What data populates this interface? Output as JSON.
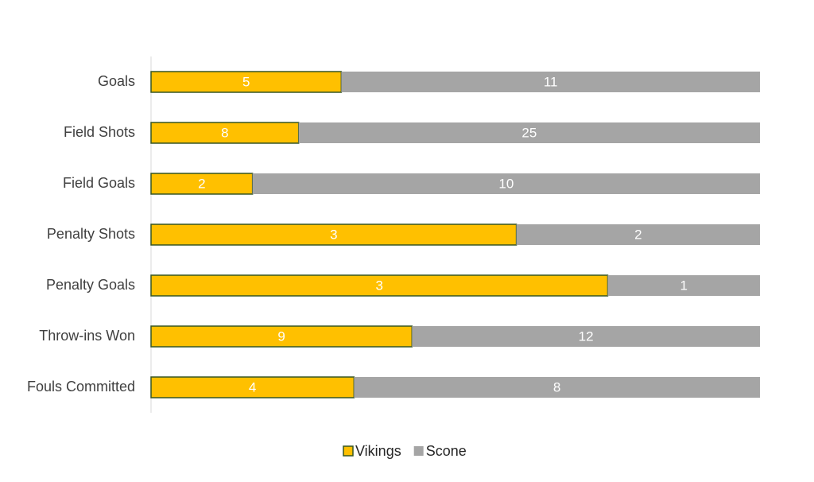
{
  "chart_data": {
    "type": "bar",
    "orientation": "horizontal",
    "stacked": "percent",
    "legend": "bottom",
    "categories": [
      "Goals",
      "Field Shots",
      "Field Goals",
      "Penalty Shots",
      "Penalty Goals",
      "Throw-ins Won",
      "Fouls Committed"
    ],
    "series": [
      {
        "name": "Vikings",
        "color": "#FFC000",
        "values": [
          5,
          8,
          2,
          3,
          3,
          9,
          4
        ]
      },
      {
        "name": "Scone",
        "color": "#A5A5A5",
        "values": [
          11,
          25,
          10,
          2,
          1,
          12,
          8
        ]
      }
    ]
  }
}
